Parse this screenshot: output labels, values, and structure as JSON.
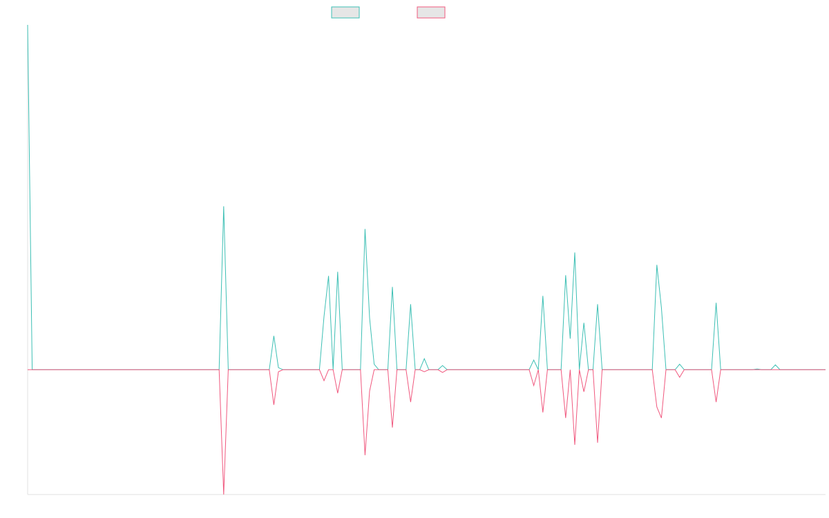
{
  "chart_data": {
    "type": "line",
    "categories": [
      null,
      null,
      null,
      null,
      null,
      null,
      null,
      null,
      null,
      null,
      null,
      null,
      null,
      null,
      null,
      null,
      null,
      null,
      null,
      null,
      null,
      null,
      null,
      null,
      null,
      null,
      null,
      null,
      null,
      null,
      null,
      null,
      null,
      null,
      null,
      null,
      null,
      null,
      null,
      null,
      null,
      null,
      null,
      null,
      null,
      null,
      null,
      null,
      null,
      null,
      null,
      null,
      null,
      null,
      null,
      null,
      null,
      null,
      null,
      null,
      null,
      null,
      null,
      null,
      null,
      null,
      null,
      null,
      null,
      null,
      null,
      null,
      null,
      null,
      null,
      null,
      null,
      null,
      null,
      null,
      null,
      null,
      null,
      null,
      null,
      null,
      null,
      null,
      null,
      null,
      null,
      null,
      null,
      null,
      null,
      null,
      null,
      null,
      null,
      null,
      null,
      null,
      null,
      null,
      null,
      null,
      null,
      null,
      null,
      null,
      null,
      null,
      null,
      null,
      null,
      null,
      null,
      null,
      null,
      null,
      null,
      null,
      null,
      null,
      null,
      null,
      null,
      null,
      null,
      null,
      null,
      null,
      null,
      null,
      null,
      null,
      null,
      null,
      null,
      null,
      null,
      null,
      null,
      null,
      null,
      null,
      null,
      null,
      null,
      null,
      null,
      null,
      null,
      null,
      null,
      null,
      null,
      null,
      null,
      null,
      null,
      null,
      null,
      null,
      null,
      null,
      null,
      null,
      null,
      null,
      null,
      null,
      null,
      null,
      null,
      null
    ],
    "series": [
      {
        "color": "#3cbfb4",
        "values": [
          100,
          0,
          0,
          0,
          0,
          0,
          0,
          0,
          0,
          0,
          0,
          0,
          0,
          0,
          0,
          0,
          0,
          0,
          0,
          0,
          0,
          0,
          0,
          0,
          0,
          0,
          0,
          0,
          0,
          0,
          0,
          0,
          0,
          0,
          0,
          0,
          0,
          0,
          0,
          0,
          0,
          0,
          0,
          47.4,
          0,
          0,
          0,
          0,
          0,
          0,
          0,
          0,
          0,
          0,
          9.8,
          0.6,
          0,
          0,
          0,
          0,
          0,
          0,
          0,
          0,
          0,
          15.4,
          27.2,
          0,
          28.4,
          0,
          0,
          0,
          0,
          0,
          40.8,
          15,
          1.6,
          0,
          0,
          0,
          24,
          0,
          0,
          0,
          19,
          0,
          0,
          3.2,
          0,
          0,
          0,
          1.2,
          0,
          0,
          0,
          0,
          0,
          0,
          0,
          0,
          0,
          0,
          0,
          0,
          0,
          0,
          0,
          0,
          0,
          0,
          0,
          2.8,
          0,
          21.4,
          0,
          0,
          0,
          0,
          27.4,
          9,
          34,
          0,
          13.6,
          0,
          0,
          19,
          0,
          0,
          0,
          0,
          0,
          0,
          0,
          0,
          0,
          0,
          0,
          0,
          30.4,
          18,
          0,
          0,
          0,
          1.6,
          0,
          0,
          0,
          0,
          0,
          0,
          0,
          19.4,
          0,
          0,
          0,
          0,
          0,
          0,
          0,
          0,
          0.2,
          0,
          0,
          0,
          1.4,
          0,
          0,
          0,
          0,
          0,
          0,
          0,
          0,
          0,
          0,
          0
        ]
      },
      {
        "color": "#f0587e",
        "values": [
          0,
          0,
          0,
          0,
          0,
          0,
          0,
          0,
          0,
          0,
          0,
          0,
          0,
          0,
          0,
          0,
          0,
          0,
          0,
          0,
          0,
          0,
          0,
          0,
          0,
          0,
          0,
          0,
          0,
          0,
          0,
          0,
          0,
          0,
          0,
          0,
          0,
          0,
          0,
          0,
          0,
          0,
          0,
          -36.2,
          0,
          0,
          0,
          0,
          0,
          0,
          0,
          0,
          0,
          0,
          -10.2,
          -0.6,
          0,
          0,
          0,
          0,
          0,
          0,
          0,
          0,
          0,
          -3.2,
          0,
          0,
          -6.8,
          0,
          0,
          0,
          0,
          0,
          -24.8,
          -6.2,
          0,
          0,
          0,
          0,
          -16.8,
          0,
          0,
          0,
          -9.4,
          0,
          0,
          -0.6,
          0,
          0,
          0,
          -0.8,
          0,
          0,
          0,
          0,
          0,
          0,
          0,
          0,
          0,
          0,
          0,
          0,
          0,
          0,
          0,
          0,
          0,
          0,
          0,
          -4.6,
          0,
          -12.4,
          0,
          0,
          0,
          0,
          -14,
          0,
          -21.8,
          0,
          -6.4,
          0,
          0,
          -21.2,
          0,
          0,
          0,
          0,
          0,
          0,
          0,
          0,
          0,
          0,
          0,
          0,
          -10.8,
          -14,
          0,
          0,
          0,
          -2.2,
          0,
          0,
          0,
          0,
          0,
          0,
          0,
          -9.4,
          0,
          0,
          0,
          0,
          0,
          0,
          0,
          0,
          0,
          0,
          0,
          0,
          0,
          0,
          0,
          0,
          0,
          0,
          0,
          0,
          0,
          0,
          0,
          0
        ]
      }
    ],
    "ylim": [
      -36.2,
      100
    ],
    "grid": false
  }
}
